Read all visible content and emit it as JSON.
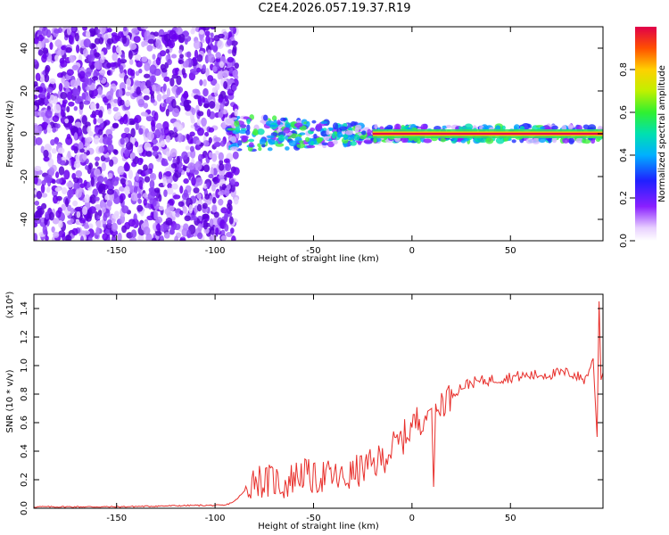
{
  "title": "C2E4.2026.057.19.37.R19",
  "colors": {
    "snr_line": "#e8302c",
    "spectrum_low": "#d8b8f8",
    "spectrum_mid": "#6a00f0",
    "frame": "#000000"
  },
  "chart_data": [
    {
      "type": "heatmap",
      "title": "",
      "xlabel": "Height of straight line (km)",
      "ylabel": "Frequency (Hz)",
      "xlim": [
        -192,
        97
      ],
      "ylim": [
        -50,
        50
      ],
      "xticks": [
        -150,
        -100,
        -50,
        0,
        50
      ],
      "yticks": [
        -40,
        -20,
        0,
        20,
        40
      ],
      "notes": "Broadband noise below about -93 km; narrowband signal near 0 Hz above that, strongest (red) from about -20 to 97 km",
      "colorbar": {
        "label": "Normalized spectral amplitude",
        "range": [
          0,
          1
        ],
        "ticks": [
          "0.0",
          "0.2",
          "0.4",
          "0.6",
          "0.8"
        ]
      }
    },
    {
      "type": "line",
      "title": "",
      "xlabel": "Height of straight line (km)",
      "ylabel": "SNR (10 * v/v)",
      "scale_label": "(x10⁴)",
      "xlim": [
        -192,
        97
      ],
      "ylim": [
        0,
        1.5
      ],
      "xticks": [
        -150,
        -100,
        -50,
        0,
        50
      ],
      "yticks": [
        "0.0",
        "0.2",
        "0.4",
        "0.6",
        "0.8",
        "1.0",
        "1.2",
        "1.4"
      ],
      "series": [
        {
          "name": "SNR",
          "x": [
            -192,
            -150,
            -110,
            -95,
            -90,
            -85,
            -80,
            -75,
            -70,
            -65,
            -60,
            -55,
            -50,
            -45,
            -40,
            -35,
            -30,
            -25,
            -20,
            -15,
            -10,
            -5,
            0,
            5,
            8,
            10,
            11,
            12,
            15,
            20,
            25,
            30,
            40,
            50,
            60,
            70,
            80,
            88,
            92,
            94,
            95,
            96,
            97
          ],
          "y": [
            0.01,
            0.01,
            0.02,
            0.02,
            0.05,
            0.12,
            0.22,
            0.18,
            0.2,
            0.16,
            0.22,
            0.25,
            0.2,
            0.23,
            0.22,
            0.2,
            0.24,
            0.28,
            0.3,
            0.35,
            0.42,
            0.48,
            0.58,
            0.64,
            0.68,
            0.7,
            0.15,
            0.62,
            0.75,
            0.8,
            0.85,
            0.88,
            0.9,
            0.92,
            0.93,
            0.94,
            0.95,
            0.9,
            1.05,
            0.5,
            1.45,
            0.9,
            0.95
          ]
        }
      ]
    }
  ]
}
